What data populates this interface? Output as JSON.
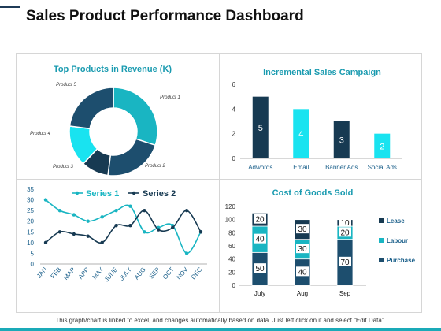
{
  "header": {
    "title": "Sales Product Performance Dashboard"
  },
  "footer": {
    "note": "This graph/chart is linked to excel, and changes automatically based on data. Just left click on it and select “Edit Data”."
  },
  "colors": {
    "navy": "#1d4e6e",
    "teal": "#19b5c2",
    "cyan": "#19e3f0",
    "dark": "#173a52",
    "accent": "#1aaab8"
  },
  "chart_data": [
    {
      "type": "pie",
      "title": "Top Products in Revenue (K)",
      "categories": [
        "Product 1",
        "Product 2",
        "Product 3",
        "Product 4",
        "Product 5"
      ],
      "values": [
        30,
        22,
        10,
        15,
        23
      ]
    },
    {
      "type": "bar",
      "title": "Incremental Sales Campaign",
      "categories": [
        "Adwords",
        "Email",
        "Banner Ads",
        "Social Ads"
      ],
      "values": [
        5,
        4,
        3,
        2
      ],
      "ylim": [
        0,
        6
      ],
      "yticks": [
        0,
        2,
        4,
        6
      ]
    },
    {
      "type": "line",
      "title": "",
      "categories": [
        "JAN",
        "FEB",
        "MAR",
        "APR",
        "MAY",
        "JUNE",
        "JULY",
        "AUG",
        "SEP",
        "OCT",
        "NOV",
        "DEC"
      ],
      "series": [
        {
          "name": "Series 1",
          "values": [
            30,
            25,
            23,
            20,
            22,
            25,
            27,
            15,
            17,
            18,
            5,
            15
          ]
        },
        {
          "name": "Series 2",
          "values": [
            10,
            15,
            14,
            13,
            10,
            18,
            18,
            25,
            16,
            17,
            25,
            15
          ]
        }
      ],
      "ylim": [
        0,
        35
      ],
      "yticks": [
        0,
        5,
        10,
        15,
        20,
        25,
        30,
        35
      ],
      "legend": "top"
    },
    {
      "type": "bar",
      "stacked": true,
      "title": "Cost of Goods Sold",
      "categories": [
        "July",
        "Aug",
        "Sep"
      ],
      "series": [
        {
          "name": "Purchase",
          "values": [
            50,
            40,
            70
          ]
        },
        {
          "name": "Labour",
          "values": [
            40,
            30,
            20
          ]
        },
        {
          "name": "Lease",
          "values": [
            20,
            30,
            10
          ]
        }
      ],
      "legend_order": [
        "Lease",
        "Labour",
        "Purchase"
      ],
      "ylim": [
        0,
        120
      ],
      "yticks": [
        0,
        20,
        40,
        60,
        80,
        100,
        120
      ],
      "legend": "right"
    }
  ]
}
